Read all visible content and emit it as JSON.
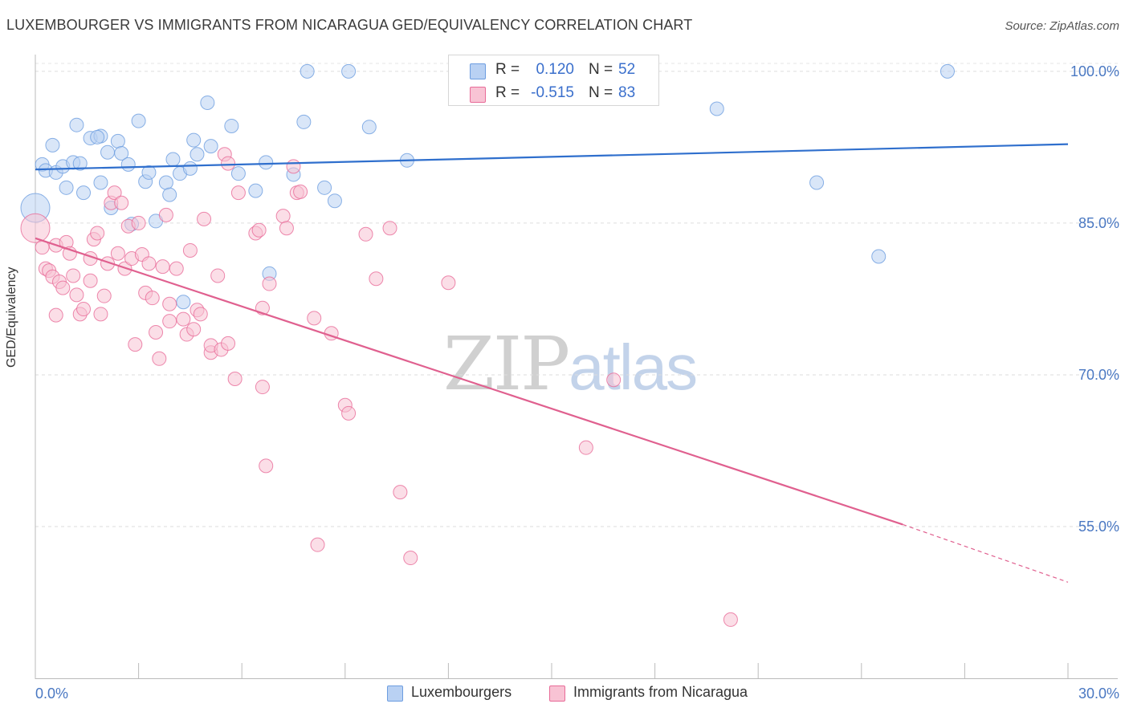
{
  "title": "LUXEMBOURGER VS IMMIGRANTS FROM NICARAGUA GED/EQUIVALENCY CORRELATION CHART",
  "source": "Source: ZipAtlas.com",
  "watermark": {
    "zip": "ZIP",
    "atlas": "atlas"
  },
  "legend_top": {
    "rows": [
      {
        "r_label": "R =",
        "r_value": "0.120",
        "n_label": "N =",
        "n_value": "52",
        "color": "#6d9de0",
        "fill": "#b9d1f3"
      },
      {
        "r_label": "R =",
        "r_value": "-0.515",
        "n_label": "N =",
        "n_value": "83",
        "color": "#e86b98",
        "fill": "#f8c3d4"
      }
    ],
    "value_color": "#3a6fcc"
  },
  "legend_bottom": [
    "Luxembourgers",
    "Immigrants from Nicaragua"
  ],
  "chart_data": {
    "type": "scatter",
    "title": "LUXEMBOURGER VS IMMIGRANTS FROM NICARAGUA GED/EQUIVALENCY CORRELATION CHART",
    "xlabel": "",
    "ylabel": "GED/Equivalency",
    "xlim": [
      0,
      30
    ],
    "ylim": [
      40,
      101.5
    ],
    "x_tick_labels": [
      "0.0%",
      "30.0%"
    ],
    "y_ticks": [
      55,
      70,
      85,
      100
    ],
    "y_tick_labels": [
      "55.0%",
      "70.0%",
      "85.0%",
      "100.0%"
    ],
    "grid": "horizontal dashed",
    "legend_position": "top-center and bottom",
    "series": [
      {
        "name": "Luxembourgers",
        "color": "#6d9de0",
        "fill": "#b9d1f3",
        "r": 0.12,
        "n": 52,
        "trend": {
          "x": [
            0,
            30
          ],
          "y": [
            90.3,
            92.8
          ]
        },
        "points": [
          [
            0.0,
            86.5,
            "big"
          ],
          [
            0.2,
            90.8
          ],
          [
            0.3,
            90.2
          ],
          [
            0.5,
            92.7
          ],
          [
            0.6,
            90.0
          ],
          [
            0.8,
            90.6
          ],
          [
            0.9,
            88.5
          ],
          [
            1.1,
            91.0
          ],
          [
            1.2,
            94.7
          ],
          [
            1.3,
            90.9
          ],
          [
            1.4,
            88.0
          ],
          [
            1.6,
            93.4
          ],
          [
            1.9,
            93.6
          ],
          [
            1.9,
            89.0
          ],
          [
            2.1,
            92.0
          ],
          [
            2.2,
            86.5
          ],
          [
            2.4,
            93.1
          ],
          [
            2.5,
            91.9
          ],
          [
            2.7,
            90.8
          ],
          [
            2.8,
            84.9
          ],
          [
            3.0,
            95.1
          ],
          [
            3.2,
            89.1
          ],
          [
            3.3,
            90.0
          ],
          [
            3.5,
            85.2
          ],
          [
            3.8,
            89.0
          ],
          [
            3.9,
            87.8
          ],
          [
            4.0,
            91.3
          ],
          [
            4.2,
            89.9
          ],
          [
            4.3,
            77.2
          ],
          [
            4.5,
            90.4
          ],
          [
            4.6,
            93.2
          ],
          [
            4.7,
            91.8
          ],
          [
            5.0,
            96.9
          ],
          [
            5.1,
            92.6
          ],
          [
            5.7,
            94.6
          ],
          [
            5.9,
            89.9
          ],
          [
            6.4,
            88.2
          ],
          [
            6.7,
            91.0
          ],
          [
            6.8,
            80.0
          ],
          [
            7.5,
            89.8
          ],
          [
            7.8,
            95.0
          ],
          [
            7.9,
            100.0
          ],
          [
            8.4,
            88.5
          ],
          [
            8.7,
            87.2
          ],
          [
            9.1,
            100.0
          ],
          [
            9.7,
            94.5
          ],
          [
            10.8,
            91.2
          ],
          [
            19.8,
            96.3
          ],
          [
            22.7,
            89.0
          ],
          [
            24.5,
            81.7
          ],
          [
            26.5,
            100.0
          ],
          [
            1.8,
            93.5
          ]
        ]
      },
      {
        "name": "Immigrants from Nicaragua",
        "color": "#e86b98",
        "fill": "#f8c3d4",
        "r": -0.515,
        "n": 83,
        "trend": {
          "x": [
            0,
            25.2
          ],
          "y": [
            83.5,
            55.2
          ]
        },
        "trend_dashed": {
          "x": [
            25.2,
            30
          ],
          "y": [
            55.2,
            49.5
          ]
        },
        "points": [
          [
            0.0,
            84.5,
            "big"
          ],
          [
            0.2,
            82.6
          ],
          [
            0.3,
            80.5
          ],
          [
            0.4,
            80.3
          ],
          [
            0.5,
            79.7
          ],
          [
            0.6,
            82.8
          ],
          [
            0.6,
            75.9
          ],
          [
            0.7,
            79.2
          ],
          [
            0.8,
            78.6
          ],
          [
            0.9,
            83.1
          ],
          [
            1.0,
            82.0
          ],
          [
            1.1,
            79.8
          ],
          [
            1.2,
            77.9
          ],
          [
            1.3,
            76.0
          ],
          [
            1.4,
            76.5
          ],
          [
            1.6,
            81.5
          ],
          [
            1.6,
            79.3
          ],
          [
            1.7,
            83.4
          ],
          [
            1.8,
            84.0
          ],
          [
            1.9,
            76.0
          ],
          [
            2.0,
            77.8
          ],
          [
            2.1,
            81.0
          ],
          [
            2.2,
            87.0
          ],
          [
            2.3,
            88.0
          ],
          [
            2.4,
            82.0
          ],
          [
            2.5,
            87.0
          ],
          [
            2.6,
            80.5
          ],
          [
            2.7,
            84.7
          ],
          [
            2.8,
            81.5
          ],
          [
            2.9,
            73.0
          ],
          [
            3.0,
            85.0
          ],
          [
            3.1,
            81.9
          ],
          [
            3.2,
            78.1
          ],
          [
            3.3,
            81.0
          ],
          [
            3.4,
            77.6
          ],
          [
            3.5,
            74.2
          ],
          [
            3.6,
            71.6
          ],
          [
            3.7,
            80.7
          ],
          [
            3.8,
            85.8
          ],
          [
            3.9,
            75.3
          ],
          [
            3.9,
            77.0
          ],
          [
            4.1,
            80.5
          ],
          [
            4.3,
            75.5
          ],
          [
            4.4,
            74.0
          ],
          [
            4.5,
            82.3
          ],
          [
            4.6,
            74.5
          ],
          [
            4.7,
            76.4
          ],
          [
            4.8,
            76.0
          ],
          [
            4.9,
            85.4
          ],
          [
            5.1,
            72.2
          ],
          [
            5.1,
            72.9
          ],
          [
            5.3,
            79.8
          ],
          [
            5.4,
            72.5
          ],
          [
            5.5,
            91.8
          ],
          [
            5.6,
            73.1
          ],
          [
            5.6,
            90.9
          ],
          [
            5.8,
            69.6
          ],
          [
            5.9,
            88.0
          ],
          [
            6.4,
            84.0
          ],
          [
            6.5,
            84.3
          ],
          [
            6.6,
            76.6
          ],
          [
            6.6,
            68.8
          ],
          [
            6.7,
            61.0
          ],
          [
            6.8,
            79.0
          ],
          [
            7.2,
            85.7
          ],
          [
            7.3,
            84.5
          ],
          [
            7.5,
            90.6
          ],
          [
            7.6,
            88.0
          ],
          [
            7.7,
            88.1
          ],
          [
            8.1,
            75.6
          ],
          [
            8.2,
            53.2
          ],
          [
            8.6,
            74.1
          ],
          [
            9.0,
            67.0
          ],
          [
            9.1,
            66.2
          ],
          [
            9.6,
            83.9
          ],
          [
            9.9,
            79.5
          ],
          [
            10.3,
            84.5
          ],
          [
            10.6,
            58.4
          ],
          [
            10.9,
            51.9
          ],
          [
            12.0,
            79.1
          ],
          [
            16.0,
            62.8
          ],
          [
            16.8,
            69.5
          ],
          [
            20.2,
            45.8
          ]
        ]
      }
    ]
  }
}
